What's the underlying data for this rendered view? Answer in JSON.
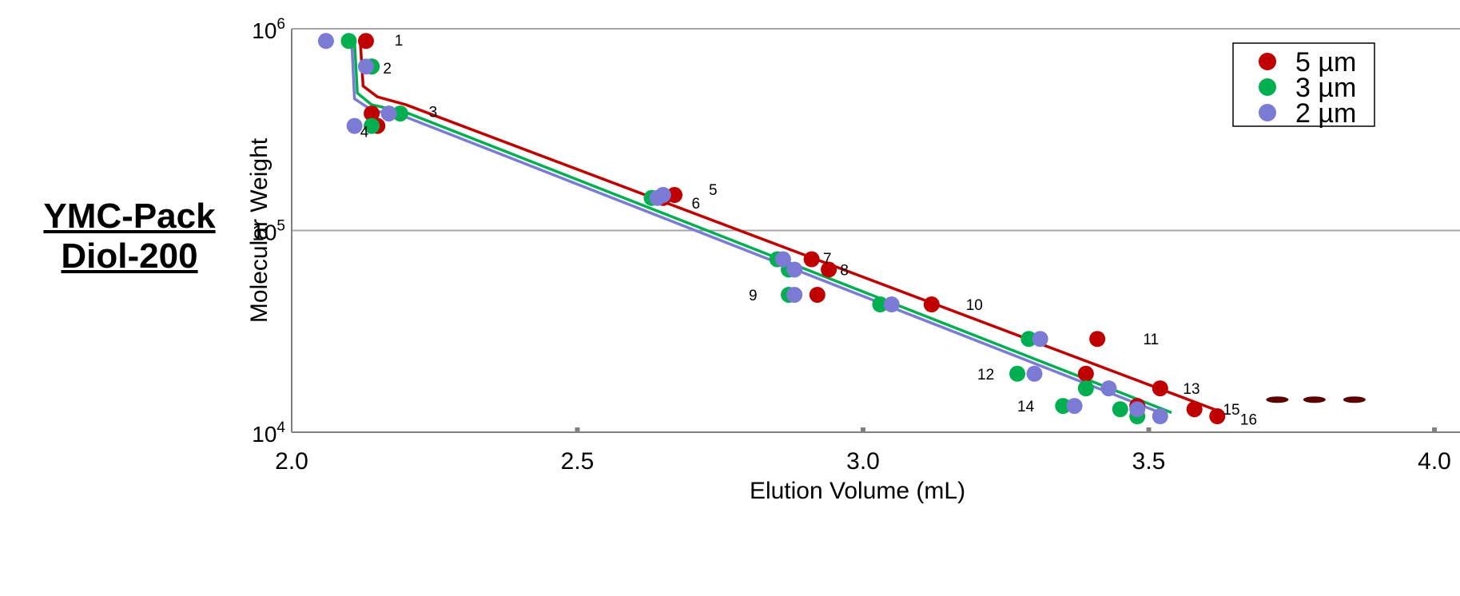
{
  "side_label": {
    "line1": "YMC-Pack",
    "line2": "Diol-200"
  },
  "chart_data": {
    "type": "scatter",
    "title": "",
    "xlabel": "Elution Volume (mL)",
    "ylabel": "Molecular Weight",
    "xlim": [
      2.0,
      4.0
    ],
    "ylim": [
      10000,
      1000000
    ],
    "y_scale": "log",
    "x_ticks": [
      "2.0",
      "2.5",
      "3.0",
      "3.5",
      "4.0"
    ],
    "y_ticks": [
      {
        "base": "10",
        "exp": "6",
        "value": 1000000
      },
      {
        "base": "10",
        "exp": "5",
        "value": 100000
      },
      {
        "base": "10",
        "exp": "4",
        "value": 10000
      }
    ],
    "grid": "horizontal",
    "legend_position": "top-right",
    "series": [
      {
        "name": "5 µm",
        "color": "#c00000",
        "points": [
          [
            2.13,
            870000
          ],
          [
            2.14,
            650000
          ],
          [
            2.14,
            380000
          ],
          [
            2.15,
            330000
          ],
          [
            2.67,
            150000
          ],
          [
            2.65,
            145000
          ],
          [
            2.91,
            72000
          ],
          [
            2.94,
            64000
          ],
          [
            2.92,
            48000
          ],
          [
            3.12,
            43000
          ],
          [
            3.41,
            29000
          ],
          [
            3.39,
            19500
          ],
          [
            3.52,
            16500
          ],
          [
            3.48,
            13500
          ],
          [
            3.58,
            13000
          ],
          [
            3.62,
            12000
          ]
        ],
        "fit": [
          [
            2.12,
            870000
          ],
          [
            2.125,
            520000
          ],
          [
            2.15,
            460000
          ],
          [
            2.2,
            420000
          ],
          [
            3.63,
            12500
          ]
        ]
      },
      {
        "name": "3 µm",
        "color": "#00b050",
        "points": [
          [
            2.1,
            870000
          ],
          [
            2.14,
            650000
          ],
          [
            2.19,
            380000
          ],
          [
            2.14,
            330000
          ],
          [
            2.63,
            145000
          ],
          [
            2.85,
            72000
          ],
          [
            2.87,
            64000
          ],
          [
            2.87,
            48000
          ],
          [
            3.03,
            43000
          ],
          [
            3.29,
            29000
          ],
          [
            3.27,
            19500
          ],
          [
            3.39,
            16500
          ],
          [
            3.35,
            13500
          ],
          [
            3.45,
            13000
          ],
          [
            3.48,
            12000
          ]
        ],
        "fit": [
          [
            2.11,
            870000
          ],
          [
            2.115,
            480000
          ],
          [
            2.14,
            420000
          ],
          [
            2.2,
            385000
          ],
          [
            3.54,
            12500
          ]
        ]
      },
      {
        "name": "2 µm",
        "color": "#7b7bd6",
        "points": [
          [
            2.06,
            870000
          ],
          [
            2.13,
            650000
          ],
          [
            2.17,
            380000
          ],
          [
            2.11,
            330000
          ],
          [
            2.64,
            145000
          ],
          [
            2.65,
            150000
          ],
          [
            2.86,
            72000
          ],
          [
            2.88,
            64000
          ],
          [
            2.88,
            48000
          ],
          [
            3.05,
            43000
          ],
          [
            3.31,
            29000
          ],
          [
            3.3,
            19500
          ],
          [
            3.43,
            16500
          ],
          [
            3.37,
            13500
          ],
          [
            3.48,
            13000
          ],
          [
            3.52,
            12000
          ]
        ],
        "fit": [
          [
            2.105,
            870000
          ],
          [
            2.11,
            450000
          ],
          [
            2.14,
            395000
          ],
          [
            2.2,
            365000
          ],
          [
            3.52,
            12500
          ]
        ]
      }
    ],
    "annotations": [
      {
        "text": "1",
        "x": 2.18,
        "y": 880000
      },
      {
        "text": "2",
        "x": 2.16,
        "y": 640000
      },
      {
        "text": "3",
        "x": 2.24,
        "y": 390000
      },
      {
        "text": "4",
        "x": 2.12,
        "y": 310000
      },
      {
        "text": "5",
        "x": 2.73,
        "y": 160000
      },
      {
        "text": "6",
        "x": 2.7,
        "y": 137000
      },
      {
        "text": "7",
        "x": 2.93,
        "y": 73000
      },
      {
        "text": "8",
        "x": 2.96,
        "y": 64000
      },
      {
        "text": "9",
        "x": 2.8,
        "y": 48000
      },
      {
        "text": "10",
        "x": 3.18,
        "y": 43000
      },
      {
        "text": "11",
        "x": 3.49,
        "y": 29000
      },
      {
        "text": "12",
        "x": 3.2,
        "y": 19500
      },
      {
        "text": "13",
        "x": 3.56,
        "y": 16500
      },
      {
        "text": "14",
        "x": 3.27,
        "y": 13500
      },
      {
        "text": "15",
        "x": 3.63,
        "y": 13000
      },
      {
        "text": "16",
        "x": 3.66,
        "y": 11600
      }
    ],
    "extra_marks": [
      {
        "color": "#5a0000",
        "x": 3.725,
        "y": 14500
      },
      {
        "color": "#5a0000",
        "x": 3.79,
        "y": 14500
      },
      {
        "color": "#5a0000",
        "x": 3.86,
        "y": 14500
      }
    ]
  }
}
